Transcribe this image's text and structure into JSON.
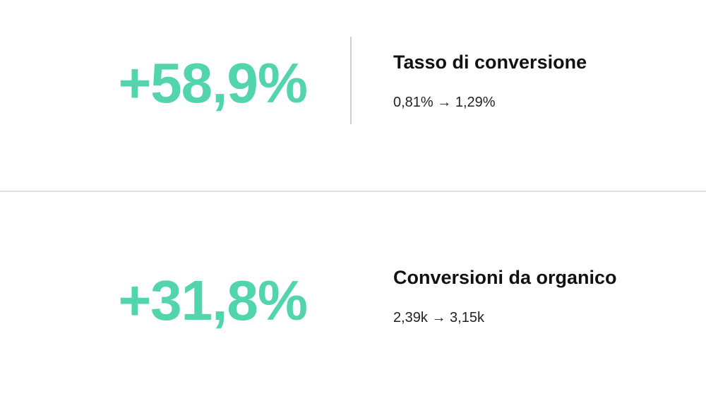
{
  "metrics": [
    {
      "value": "+58,9%",
      "title": "Tasso di conversione",
      "change": "0,81% → 1,29%"
    },
    {
      "value": "+31,8%",
      "title": "Conversioni da organico",
      "change": "2,39k → 3,15k"
    }
  ],
  "colors": {
    "accent": "#52d4ac",
    "divider": "#e0e0e0"
  }
}
